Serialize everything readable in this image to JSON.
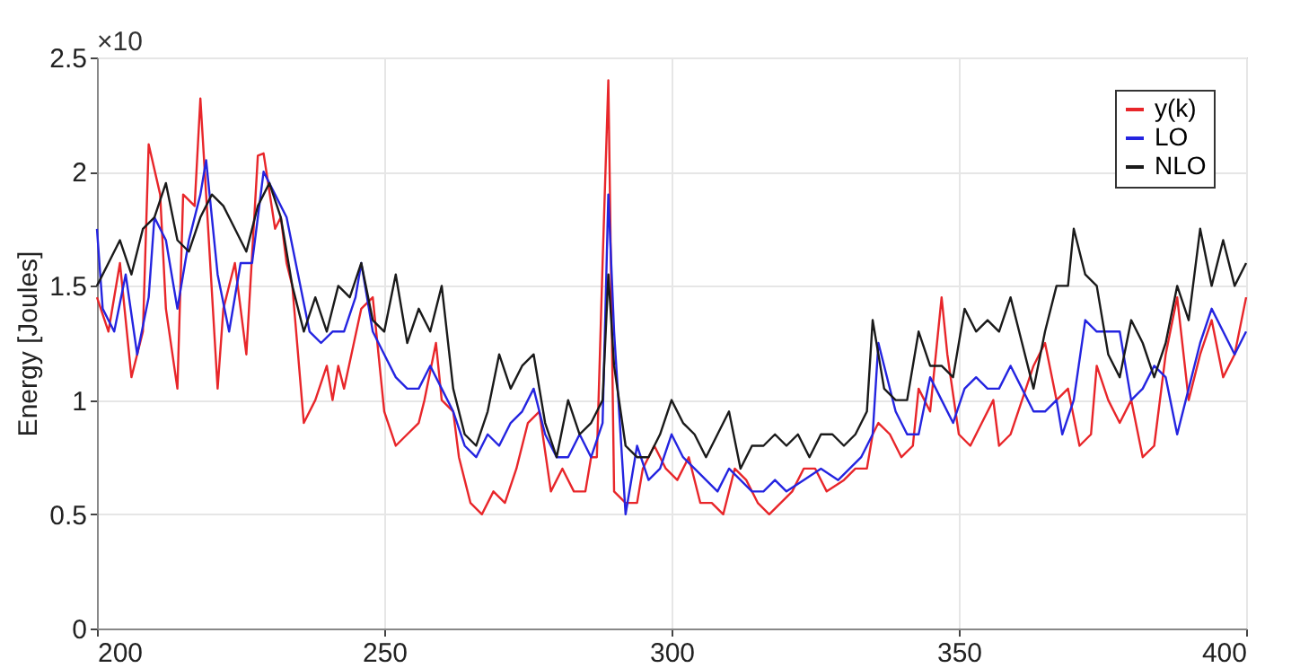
{
  "chart_data": {
    "type": "line",
    "ylabel": "Energy [Joules]",
    "annotations": [
      "×10"
    ],
    "xlim": [
      200,
      400
    ],
    "ylim": [
      0,
      2.5
    ],
    "xticks": [
      200,
      250,
      300,
      350,
      400
    ],
    "yticks": [
      0,
      0.5,
      1,
      1.5,
      2,
      2.5
    ],
    "grid": true,
    "legend": "top right",
    "line_style": "solid",
    "marker": "none",
    "series": [
      {
        "name": "y(k)",
        "color": "#e8262a",
        "x": [
          200,
          202,
          204,
          206,
          208,
          209,
          211,
          212,
          214,
          215,
          217,
          218,
          219,
          221,
          222,
          224,
          226,
          228,
          229,
          231,
          232,
          233,
          234,
          236,
          238,
          240,
          241,
          242,
          243,
          246,
          248,
          250,
          252,
          254,
          256,
          257,
          259,
          260,
          262,
          263,
          264,
          265,
          267,
          269,
          271,
          273,
          275,
          277,
          279,
          281,
          283,
          285,
          286,
          287,
          288,
          289,
          290,
          292,
          294,
          295,
          297,
          299,
          301,
          303,
          305,
          307,
          309,
          311,
          313,
          315,
          317,
          319,
          321,
          323,
          325,
          327,
          330,
          332,
          334,
          335,
          336,
          338,
          340,
          342,
          343,
          345,
          347,
          348,
          350,
          352,
          354,
          356,
          357,
          359,
          361,
          363,
          365,
          367,
          369,
          371,
          373,
          374,
          376,
          378,
          380,
          382,
          384,
          386,
          388,
          390,
          392,
          394,
          396,
          398,
          400
        ],
        "values": [
          1.45,
          1.3,
          1.6,
          1.1,
          1.3,
          2.12,
          1.9,
          1.4,
          1.05,
          1.9,
          1.85,
          2.32,
          1.9,
          1.05,
          1.4,
          1.6,
          1.2,
          2.07,
          2.08,
          1.75,
          1.8,
          1.6,
          1.5,
          0.9,
          1.0,
          1.15,
          1.0,
          1.15,
          1.05,
          1.4,
          1.45,
          0.95,
          0.8,
          0.85,
          0.9,
          1.0,
          1.25,
          1.0,
          0.95,
          0.75,
          0.65,
          0.55,
          0.5,
          0.6,
          0.55,
          0.7,
          0.9,
          0.95,
          0.6,
          0.7,
          0.6,
          0.6,
          0.75,
          0.75,
          1.6,
          2.4,
          0.6,
          0.55,
          0.55,
          0.7,
          0.8,
          0.7,
          0.65,
          0.75,
          0.55,
          0.55,
          0.5,
          0.7,
          0.65,
          0.55,
          0.5,
          0.55,
          0.6,
          0.7,
          0.7,
          0.6,
          0.65,
          0.7,
          0.7,
          0.85,
          0.9,
          0.85,
          0.75,
          0.8,
          1.05,
          0.95,
          1.45,
          1.2,
          0.85,
          0.8,
          0.9,
          1.0,
          0.8,
          0.85,
          1.0,
          1.15,
          1.25,
          1.0,
          1.05,
          0.8,
          0.85,
          1.15,
          1.0,
          0.9,
          1.0,
          0.75,
          0.8,
          1.2,
          1.45,
          1.0,
          1.2,
          1.35,
          1.1,
          1.2,
          1.45
        ]
      },
      {
        "name": "LO",
        "color": "#2424e0",
        "x": [
          200,
          201,
          203,
          205,
          207,
          209,
          210,
          212,
          214,
          216,
          218,
          219,
          221,
          223,
          225,
          227,
          229,
          231,
          233,
          235,
          237,
          239,
          241,
          243,
          245,
          246,
          248,
          250,
          252,
          254,
          256,
          258,
          260,
          262,
          264,
          266,
          268,
          270,
          272,
          274,
          276,
          278,
          280,
          282,
          284,
          286,
          288,
          289,
          290,
          291,
          292,
          294,
          296,
          298,
          300,
          302,
          304,
          306,
          308,
          310,
          312,
          314,
          316,
          318,
          320,
          323,
          326,
          329,
          331,
          333,
          335,
          336,
          337,
          339,
          341,
          343,
          345,
          347,
          349,
          351,
          353,
          355,
          357,
          359,
          361,
          363,
          365,
          367,
          368,
          370,
          372,
          374,
          376,
          378,
          380,
          382,
          384,
          386,
          388,
          390,
          392,
          394,
          396,
          398,
          400
        ],
        "values": [
          1.75,
          1.4,
          1.3,
          1.55,
          1.2,
          1.45,
          1.8,
          1.7,
          1.4,
          1.7,
          1.9,
          2.05,
          1.55,
          1.3,
          1.6,
          1.6,
          2.0,
          1.9,
          1.8,
          1.55,
          1.3,
          1.25,
          1.3,
          1.3,
          1.45,
          1.6,
          1.3,
          1.2,
          1.1,
          1.05,
          1.05,
          1.15,
          1.05,
          0.95,
          0.8,
          0.75,
          0.85,
          0.8,
          0.9,
          0.95,
          1.05,
          0.85,
          0.75,
          0.75,
          0.85,
          0.75,
          0.9,
          1.9,
          1.3,
          0.9,
          0.5,
          0.8,
          0.65,
          0.7,
          0.85,
          0.75,
          0.7,
          0.65,
          0.6,
          0.7,
          0.65,
          0.6,
          0.6,
          0.65,
          0.6,
          0.65,
          0.7,
          0.65,
          0.7,
          0.75,
          0.85,
          1.25,
          1.15,
          0.95,
          0.85,
          0.85,
          1.1,
          1.0,
          0.9,
          1.05,
          1.1,
          1.05,
          1.05,
          1.15,
          1.05,
          0.95,
          0.95,
          1.0,
          0.85,
          1.0,
          1.35,
          1.3,
          1.3,
          1.3,
          1.0,
          1.05,
          1.15,
          1.1,
          0.85,
          1.05,
          1.25,
          1.4,
          1.3,
          1.2,
          1.3
        ]
      },
      {
        "name": "NLO",
        "color": "#1a1a1a",
        "x": [
          200,
          202,
          204,
          206,
          208,
          210,
          212,
          214,
          216,
          218,
          220,
          222,
          224,
          226,
          228,
          230,
          232,
          234,
          236,
          238,
          240,
          242,
          244,
          246,
          248,
          250,
          252,
          254,
          256,
          258,
          260,
          262,
          264,
          266,
          268,
          270,
          272,
          274,
          276,
          278,
          280,
          282,
          284,
          286,
          288,
          289,
          290,
          292,
          294,
          296,
          298,
          300,
          302,
          304,
          306,
          308,
          310,
          312,
          314,
          316,
          318,
          320,
          322,
          324,
          326,
          328,
          330,
          332,
          334,
          335,
          337,
          339,
          341,
          343,
          345,
          347,
          349,
          351,
          353,
          355,
          357,
          359,
          361,
          363,
          365,
          367,
          369,
          370,
          372,
          374,
          376,
          378,
          380,
          382,
          384,
          386,
          388,
          390,
          392,
          394,
          396,
          398,
          400
        ],
        "values": [
          1.5,
          1.6,
          1.7,
          1.55,
          1.75,
          1.8,
          1.95,
          1.7,
          1.65,
          1.8,
          1.9,
          1.85,
          1.75,
          1.65,
          1.85,
          1.95,
          1.8,
          1.5,
          1.3,
          1.45,
          1.3,
          1.5,
          1.45,
          1.6,
          1.35,
          1.3,
          1.55,
          1.25,
          1.4,
          1.3,
          1.5,
          1.05,
          0.85,
          0.8,
          0.95,
          1.2,
          1.05,
          1.15,
          1.2,
          0.9,
          0.75,
          1.0,
          0.85,
          0.9,
          1.0,
          1.55,
          1.15,
          0.8,
          0.75,
          0.75,
          0.85,
          1.0,
          0.9,
          0.85,
          0.75,
          0.85,
          0.95,
          0.7,
          0.8,
          0.8,
          0.85,
          0.8,
          0.85,
          0.75,
          0.85,
          0.85,
          0.8,
          0.85,
          0.95,
          1.35,
          1.05,
          1.0,
          1.0,
          1.3,
          1.15,
          1.15,
          1.1,
          1.4,
          1.3,
          1.35,
          1.3,
          1.45,
          1.25,
          1.05,
          1.3,
          1.5,
          1.5,
          1.75,
          1.55,
          1.5,
          1.2,
          1.1,
          1.35,
          1.25,
          1.1,
          1.25,
          1.5,
          1.35,
          1.75,
          1.5,
          1.7,
          1.5,
          1.6
        ]
      }
    ]
  }
}
